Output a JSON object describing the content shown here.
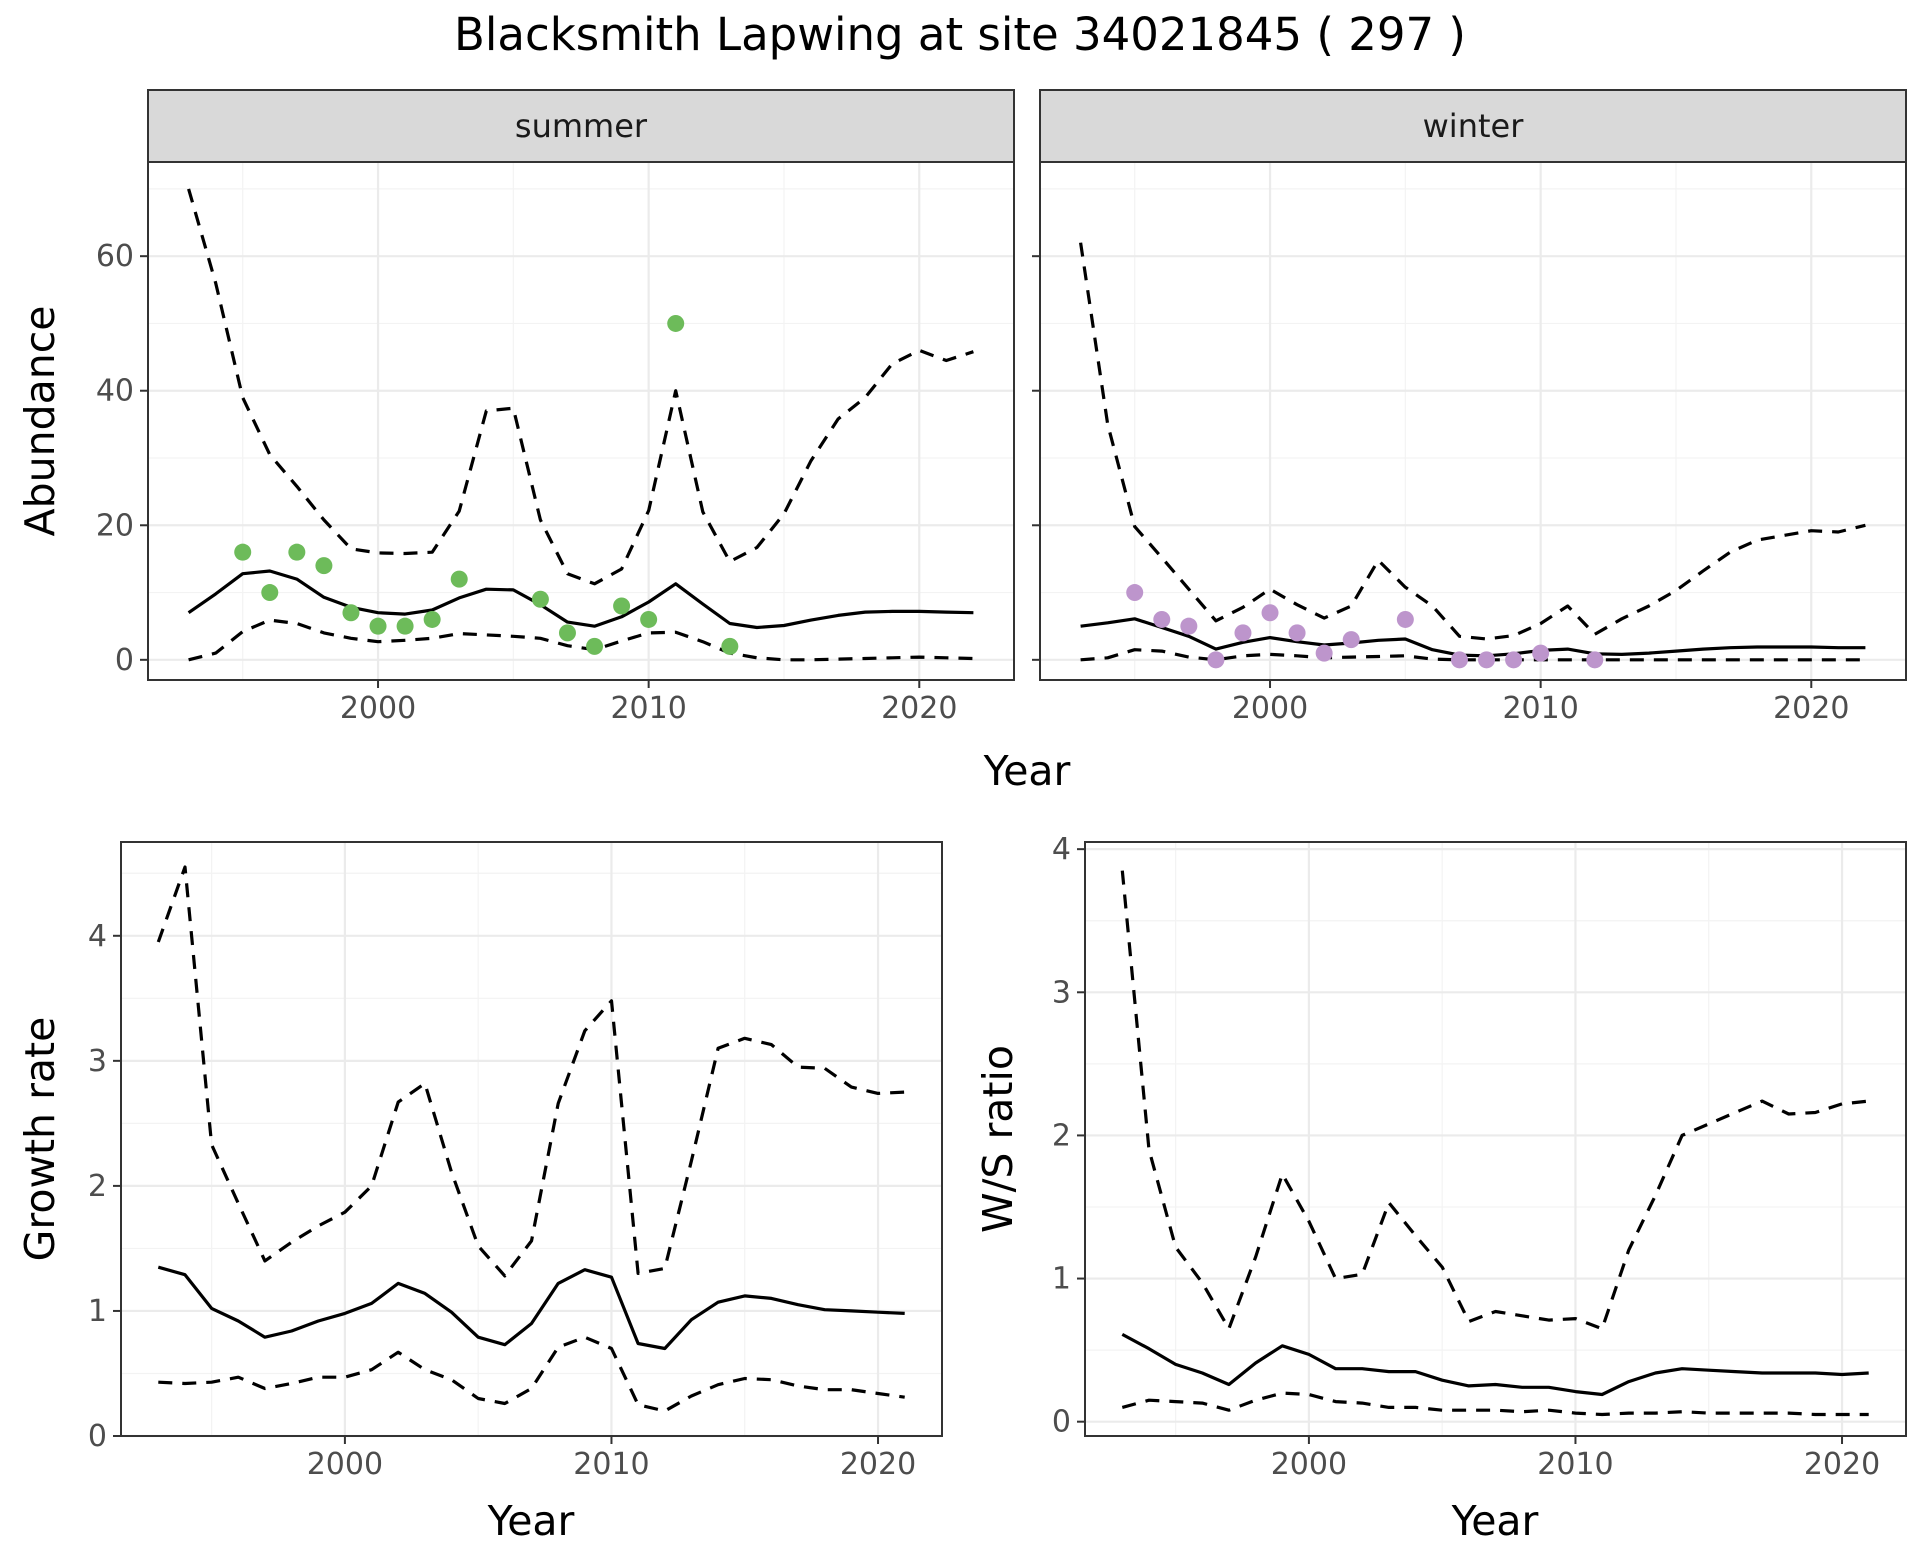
{
  "title": "Blacksmith Lapwing at site 34021845 ( 297 )",
  "colors": {
    "summer_points": "#6dbb5a",
    "winter_points": "#bd95cc",
    "lines": "#000000"
  },
  "chart_data": [
    {
      "id": "abundance",
      "type": "line",
      "ylabel": "Abundance",
      "xlabel": "Year",
      "xlim": [
        1991.5,
        2023.5
      ],
      "ylim": [
        -3,
        74
      ],
      "xticks": [
        2000,
        2010,
        2020
      ],
      "yticks": [
        0,
        20,
        40,
        60
      ],
      "grid": true,
      "facets": [
        {
          "label": "summer",
          "x": [
            1993,
            1994,
            1995,
            1996,
            1997,
            1998,
            1999,
            2000,
            2001,
            2002,
            2003,
            2004,
            2005,
            2006,
            2007,
            2008,
            2009,
            2010,
            2011,
            2012,
            2013,
            2014,
            2015,
            2016,
            2017,
            2018,
            2019,
            2020,
            2021,
            2022
          ],
          "mean": [
            7,
            9.8,
            12.8,
            13.2,
            12,
            9.3,
            7.8,
            7,
            6.8,
            7.4,
            9.2,
            10.5,
            10.4,
            8.2,
            5.6,
            5,
            6.4,
            8.6,
            11.3,
            8.3,
            5.4,
            4.8,
            5.1,
            5.9,
            6.6,
            7.1,
            7.2,
            7.2,
            7.1,
            7
          ],
          "lower": [
            0,
            1,
            4.2,
            5.9,
            5.4,
            4,
            3.2,
            2.7,
            2.9,
            3.2,
            3.9,
            3.7,
            3.5,
            3.2,
            2.1,
            1.5,
            2.8,
            4,
            4.1,
            2.7,
            1,
            0.3,
            0,
            0,
            0.1,
            0.2,
            0.3,
            0.4,
            0.3,
            0.2
          ],
          "upper": [
            70,
            56,
            39,
            30.5,
            25.8,
            20.8,
            16.5,
            15.9,
            15.8,
            16,
            22.1,
            37,
            37.4,
            20.8,
            12.8,
            11.3,
            13.5,
            22.2,
            40,
            22,
            14.6,
            16.7,
            21.7,
            29.6,
            35.8,
            39,
            44,
            46,
            44.5,
            45.8
          ],
          "points": {
            "x": [
              1995,
              1996,
              1997,
              1998,
              1999,
              2000,
              2001,
              2002,
              2003,
              2006,
              2007,
              2008,
              2009,
              2010,
              2011,
              2013
            ],
            "y": [
              16,
              10,
              16,
              14,
              7,
              5,
              5,
              6,
              12,
              9,
              4,
              2,
              8,
              6,
              50,
              2
            ]
          }
        },
        {
          "label": "winter",
          "x": [
            1993,
            1994,
            1995,
            1996,
            1997,
            1998,
            1999,
            2000,
            2001,
            2002,
            2003,
            2004,
            2005,
            2006,
            2007,
            2008,
            2009,
            2010,
            2011,
            2012,
            2013,
            2014,
            2015,
            2016,
            2017,
            2018,
            2019,
            2020,
            2021,
            2022
          ],
          "mean": [
            5,
            5.5,
            6.1,
            4.8,
            3.5,
            1.6,
            2.6,
            3.3,
            2.7,
            2.2,
            2.5,
            2.9,
            3.1,
            1.5,
            0.7,
            0.6,
            0.9,
            1.4,
            1.6,
            0.9,
            0.8,
            1,
            1.3,
            1.6,
            1.8,
            1.9,
            1.9,
            1.9,
            1.8,
            1.8
          ],
          "lower": [
            0,
            0.3,
            1.5,
            1.3,
            0.4,
            0,
            0.6,
            0.8,
            0.6,
            0.3,
            0.4,
            0.5,
            0.6,
            0.1,
            0,
            0,
            0,
            0,
            0,
            0,
            0,
            0,
            0,
            0,
            0,
            0,
            0,
            0,
            0,
            0
          ],
          "upper": [
            62,
            35,
            19.8,
            15.2,
            10.5,
            5.8,
            7.8,
            10.5,
            8.2,
            6.2,
            8,
            14.8,
            10.8,
            8,
            3.5,
            3.1,
            3.6,
            5.4,
            8,
            3.8,
            6.1,
            8,
            10.3,
            13.2,
            16,
            17.8,
            18.5,
            19.2,
            19,
            20
          ],
          "points": {
            "x": [
              1995,
              1996,
              1997,
              1998,
              1999,
              2000,
              2001,
              2002,
              2003,
              2005,
              2007,
              2008,
              2009,
              2010,
              2012
            ],
            "y": [
              10,
              6,
              5,
              0,
              4,
              7,
              4,
              1,
              3,
              6,
              0,
              0,
              0,
              1,
              0
            ]
          }
        }
      ]
    },
    {
      "id": "growth",
      "type": "line",
      "ylabel": "Growth rate",
      "xlabel": "Year",
      "xlim": [
        1991.6,
        2022.4
      ],
      "ylim": [
        0,
        4.75
      ],
      "xticks": [
        2000,
        2010,
        2020
      ],
      "yticks": [
        0,
        1,
        2,
        3,
        4
      ],
      "grid": true,
      "x": [
        1993,
        1994,
        1995,
        1996,
        1997,
        1998,
        1999,
        2000,
        2001,
        2002,
        2003,
        2004,
        2005,
        2006,
        2007,
        2008,
        2009,
        2010,
        2011,
        2012,
        2013,
        2014,
        2015,
        2016,
        2017,
        2018,
        2019,
        2020,
        2021
      ],
      "mean": [
        1.35,
        1.29,
        1.02,
        0.92,
        0.79,
        0.84,
        0.92,
        0.98,
        1.06,
        1.22,
        1.14,
        0.99,
        0.79,
        0.73,
        0.9,
        1.22,
        1.33,
        1.27,
        0.74,
        0.7,
        0.93,
        1.07,
        1.12,
        1.1,
        1.05,
        1.01,
        1,
        0.99,
        0.98
      ],
      "lower": [
        0.43,
        0.42,
        0.43,
        0.47,
        0.38,
        0.42,
        0.47,
        0.47,
        0.53,
        0.67,
        0.53,
        0.45,
        0.3,
        0.26,
        0.38,
        0.71,
        0.79,
        0.7,
        0.25,
        0.2,
        0.32,
        0.41,
        0.46,
        0.45,
        0.4,
        0.37,
        0.37,
        0.34,
        0.31
      ],
      "upper": [
        3.95,
        4.55,
        2.33,
        1.86,
        1.4,
        1.55,
        1.68,
        1.79,
        2,
        2.67,
        2.82,
        2.11,
        1.52,
        1.28,
        1.56,
        2.66,
        3.24,
        3.48,
        1.3,
        1.34,
        2.2,
        3.1,
        3.18,
        3.13,
        2.95,
        2.94,
        2.79,
        2.74,
        2.75
      ]
    },
    {
      "id": "ws_ratio",
      "type": "line",
      "ylabel": "W/S ratio",
      "xlabel": "Year",
      "xlim": [
        1991.6,
        2022.4
      ],
      "ylim": [
        -0.1,
        4.05
      ],
      "xticks": [
        2000,
        2010,
        2020
      ],
      "yticks": [
        0,
        1,
        2,
        3,
        4
      ],
      "grid": true,
      "x": [
        1993,
        1994,
        1995,
        1996,
        1997,
        1998,
        1999,
        2000,
        2001,
        2002,
        2003,
        2004,
        2005,
        2006,
        2007,
        2008,
        2009,
        2010,
        2011,
        2012,
        2013,
        2014,
        2015,
        2016,
        2017,
        2018,
        2019,
        2020,
        2021
      ],
      "mean": [
        0.61,
        0.51,
        0.4,
        0.34,
        0.26,
        0.41,
        0.53,
        0.47,
        0.37,
        0.37,
        0.35,
        0.35,
        0.29,
        0.25,
        0.26,
        0.24,
        0.24,
        0.21,
        0.19,
        0.28,
        0.34,
        0.37,
        0.36,
        0.35,
        0.34,
        0.34,
        0.34,
        0.33,
        0.34
      ],
      "lower": [
        0.1,
        0.15,
        0.14,
        0.13,
        0.08,
        0.15,
        0.2,
        0.19,
        0.14,
        0.13,
        0.1,
        0.1,
        0.08,
        0.08,
        0.08,
        0.07,
        0.08,
        0.06,
        0.05,
        0.06,
        0.06,
        0.07,
        0.06,
        0.06,
        0.06,
        0.06,
        0.05,
        0.05,
        0.05
      ],
      "upper": [
        3.85,
        1.9,
        1.22,
        0.97,
        0.65,
        1.15,
        1.73,
        1.4,
        1,
        1.03,
        1.53,
        1.3,
        1.08,
        0.7,
        0.77,
        0.74,
        0.71,
        0.72,
        0.65,
        1.2,
        1.58,
        2,
        2.08,
        2.16,
        2.24,
        2.15,
        2.16,
        2.22,
        2.24
      ]
    }
  ]
}
